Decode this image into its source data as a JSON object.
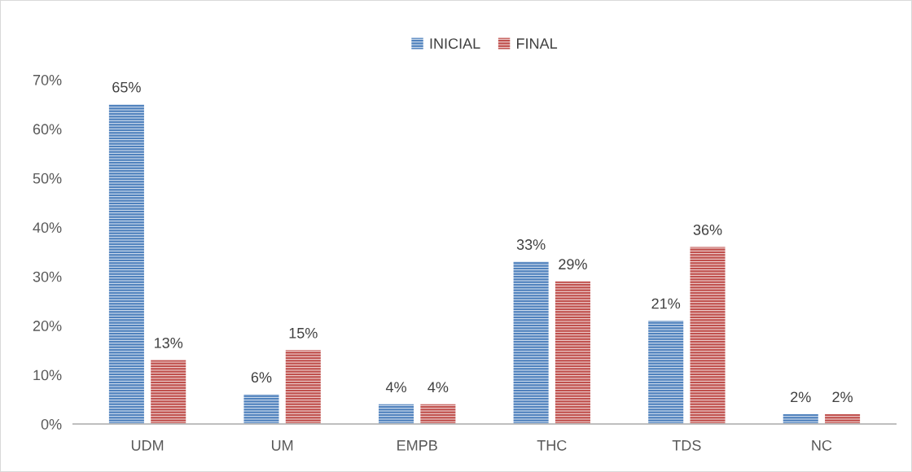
{
  "chart_data": {
    "type": "bar",
    "categories": [
      "UDM",
      "UM",
      "EMPB",
      "THC",
      "TDS",
      "NC"
    ],
    "series": [
      {
        "name": "INICIAL",
        "color": "#4f81bd",
        "values": [
          65,
          6,
          4,
          33,
          21,
          2
        ],
        "value_labels": [
          "65%",
          "6%",
          "4%",
          "33%",
          "21%",
          "2%"
        ]
      },
      {
        "name": "FINAL",
        "color": "#c0504d",
        "values": [
          13,
          15,
          4,
          29,
          36,
          2
        ],
        "value_labels": [
          "13%",
          "15%",
          "4%",
          "29%",
          "36%",
          "2%"
        ]
      }
    ],
    "ylim": [
      0,
      70
    ],
    "yticks": [
      {
        "value": 0,
        "label": "0%"
      },
      {
        "value": 10,
        "label": "10%"
      },
      {
        "value": 20,
        "label": "20%"
      },
      {
        "value": 30,
        "label": "30%"
      },
      {
        "value": 40,
        "label": "40%"
      },
      {
        "value": 50,
        "label": "50%"
      },
      {
        "value": 60,
        "label": "60%"
      },
      {
        "value": 70,
        "label": "70%"
      }
    ],
    "grid": false,
    "legend": "top"
  }
}
